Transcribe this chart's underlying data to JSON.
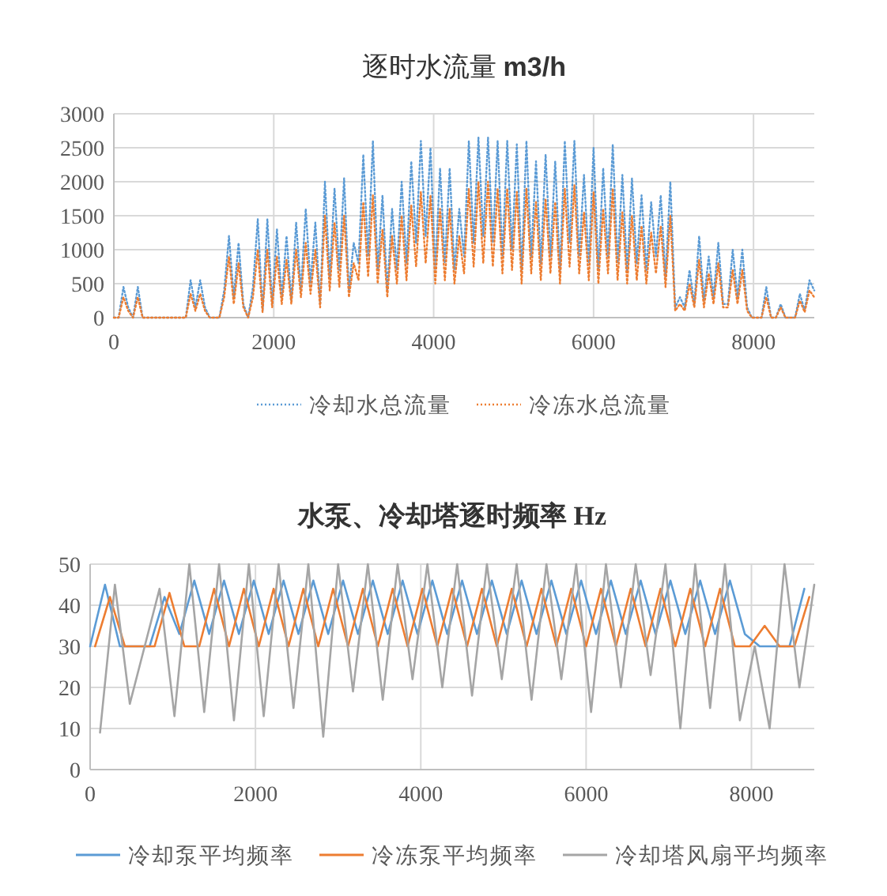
{
  "chart_data": [
    {
      "type": "line",
      "title": "逐时水流量 **m3/h**",
      "line_style": "dotted",
      "grid": true,
      "legend": "bottom",
      "marker": "none",
      "xlim": [
        0,
        8760
      ],
      "xticks": [
        0,
        2000,
        4000,
        6000,
        8000
      ],
      "ylim": [
        0,
        3000
      ],
      "yticks": [
        0,
        500,
        1000,
        1500,
        2000,
        2500,
        3000
      ],
      "x": [
        0,
        60,
        120,
        180,
        240,
        300,
        360,
        420,
        480,
        540,
        600,
        660,
        720,
        780,
        840,
        900,
        960,
        1020,
        1080,
        1140,
        1200,
        1260,
        1320,
        1380,
        1440,
        1500,
        1560,
        1620,
        1680,
        1740,
        1800,
        1860,
        1920,
        1980,
        2040,
        2100,
        2160,
        2220,
        2280,
        2340,
        2400,
        2460,
        2520,
        2580,
        2640,
        2700,
        2760,
        2820,
        2880,
        2940,
        3000,
        3060,
        3120,
        3180,
        3240,
        3300,
        3360,
        3420,
        3480,
        3540,
        3600,
        3660,
        3720,
        3780,
        3840,
        3900,
        3960,
        4020,
        4080,
        4140,
        4200,
        4260,
        4320,
        4380,
        4440,
        4500,
        4560,
        4620,
        4680,
        4740,
        4800,
        4860,
        4920,
        4980,
        5040,
        5100,
        5160,
        5220,
        5280,
        5340,
        5400,
        5460,
        5520,
        5580,
        5640,
        5700,
        5760,
        5820,
        5880,
        5940,
        6000,
        6060,
        6120,
        6180,
        6240,
        6300,
        6360,
        6420,
        6480,
        6540,
        6600,
        6660,
        6720,
        6780,
        6840,
        6900,
        6960,
        7020,
        7080,
        7140,
        7200,
        7260,
        7320,
        7380,
        7440,
        7500,
        7560,
        7620,
        7680,
        7740,
        7800,
        7860,
        7920,
        7980,
        8040,
        8100,
        8160,
        8220,
        8280,
        8340,
        8400,
        8460,
        8520,
        8580,
        8640,
        8700,
        8760
      ],
      "series": [
        {
          "name": "冷却水总流量",
          "color": "#5b9bd5",
          "values": [
            0,
            0,
            450,
            150,
            0,
            450,
            0,
            0,
            0,
            0,
            0,
            0,
            0,
            0,
            0,
            0,
            550,
            150,
            550,
            150,
            0,
            0,
            0,
            400,
            1200,
            300,
            1100,
            200,
            0,
            450,
            1450,
            100,
            1450,
            200,
            1300,
            300,
            1200,
            250,
            1400,
            400,
            1600,
            500,
            1400,
            200,
            2000,
            600,
            1900,
            700,
            2050,
            400,
            1100,
            800,
            2400,
            900,
            2600,
            700,
            1800,
            400,
            1600,
            700,
            2000,
            800,
            2300,
            1100,
            2600,
            1200,
            2500,
            700,
            2200,
            800,
            2200,
            700,
            1600,
            900,
            2600,
            1100,
            2650,
            1200,
            2650,
            1100,
            2600,
            900,
            2600,
            1000,
            2550,
            700,
            2600,
            900,
            2300,
            800,
            2400,
            900,
            2300,
            700,
            2600,
            1100,
            2600,
            900,
            2100,
            800,
            2500,
            700,
            2200,
            900,
            2550,
            800,
            2100,
            700,
            2050,
            800,
            1800,
            700,
            1700,
            900,
            1800,
            600,
            2000,
            150,
            300,
            150,
            700,
            200,
            1200,
            250,
            900,
            300,
            1100,
            200,
            200,
            1000,
            300,
            1000,
            150,
            0,
            0,
            0,
            450,
            0,
            0,
            200,
            0,
            0,
            0,
            350,
            100,
            550,
            400
          ]
        },
        {
          "name": "冷冻水总流量",
          "color": "#ed7d31",
          "values": [
            0,
            0,
            300,
            100,
            0,
            300,
            0,
            0,
            0,
            0,
            0,
            0,
            0,
            0,
            0,
            0,
            350,
            100,
            350,
            100,
            0,
            0,
            0,
            300,
            900,
            200,
            800,
            150,
            0,
            300,
            1000,
            80,
            1000,
            150,
            900,
            200,
            850,
            200,
            1000,
            300,
            1100,
            350,
            1000,
            150,
            1500,
            400,
            1400,
            450,
            1500,
            300,
            800,
            550,
            1700,
            600,
            1800,
            500,
            1300,
            300,
            1200,
            500,
            1500,
            550,
            1650,
            750,
            1850,
            800,
            1800,
            500,
            1600,
            550,
            1600,
            500,
            1200,
            650,
            1900,
            750,
            2000,
            800,
            2000,
            750,
            1900,
            650,
            1900,
            700,
            1850,
            500,
            1900,
            650,
            1700,
            550,
            1750,
            650,
            1700,
            500,
            1900,
            750,
            1950,
            650,
            1550,
            550,
            1850,
            500,
            1600,
            650,
            1900,
            550,
            1550,
            500,
            1500,
            550,
            1350,
            500,
            1250,
            650,
            1350,
            450,
            1500,
            100,
            200,
            100,
            500,
            150,
            850,
            150,
            650,
            200,
            800,
            150,
            150,
            700,
            200,
            700,
            100,
            0,
            0,
            0,
            300,
            0,
            0,
            150,
            0,
            0,
            0,
            250,
            80,
            400,
            300
          ]
        }
      ]
    },
    {
      "type": "line",
      "title": "水泵、冷却塔逐时频率 Hz",
      "grid": true,
      "legend": "bottom",
      "marker": "none",
      "xlim": [
        0,
        8760
      ],
      "xticks": [
        0,
        2000,
        4000,
        6000,
        8000
      ],
      "ylim": [
        0,
        50
      ],
      "yticks": [
        0,
        10,
        20,
        30,
        40,
        50
      ],
      "series": [
        {
          "name": "冷却泵平均频率",
          "color": "#5b9bd5",
          "x": [
            0,
            180,
            360,
            540,
            720,
            900,
            1080,
            1260,
            1440,
            1620,
            1800,
            1980,
            2160,
            2340,
            2520,
            2700,
            2880,
            3060,
            3240,
            3420,
            3600,
            3780,
            3960,
            4140,
            4320,
            4500,
            4680,
            4860,
            5040,
            5220,
            5400,
            5580,
            5760,
            5940,
            6120,
            6300,
            6480,
            6660,
            6840,
            7020,
            7200,
            7380,
            7560,
            7740,
            7920,
            8100,
            8280,
            8460,
            8640
          ],
          "values": [
            30,
            45,
            30,
            30,
            30,
            42,
            33,
            46,
            33,
            46,
            33,
            46,
            33,
            46,
            33,
            46,
            33,
            46,
            33,
            46,
            33,
            46,
            33,
            46,
            33,
            46,
            33,
            46,
            33,
            46,
            33,
            46,
            33,
            46,
            33,
            46,
            33,
            46,
            33,
            46,
            33,
            46,
            33,
            46,
            33,
            30,
            30,
            30,
            44
          ]
        },
        {
          "name": "冷冻泵平均频率",
          "color": "#ed7d31",
          "x": [
            60,
            240,
            420,
            600,
            780,
            960,
            1140,
            1320,
            1500,
            1680,
            1860,
            2040,
            2220,
            2400,
            2580,
            2760,
            2940,
            3120,
            3300,
            3480,
            3660,
            3840,
            4020,
            4200,
            4380,
            4560,
            4740,
            4920,
            5100,
            5280,
            5460,
            5640,
            5820,
            6000,
            6180,
            6360,
            6540,
            6720,
            6900,
            7080,
            7260,
            7440,
            7620,
            7800,
            7980,
            8160,
            8340,
            8520,
            8700
          ],
          "values": [
            30,
            42,
            30,
            30,
            30,
            43,
            30,
            30,
            44,
            30,
            44,
            30,
            44,
            30,
            44,
            30,
            44,
            30,
            44,
            30,
            44,
            30,
            44,
            30,
            44,
            30,
            44,
            30,
            44,
            30,
            44,
            30,
            44,
            30,
            44,
            30,
            44,
            30,
            44,
            30,
            44,
            30,
            44,
            30,
            30,
            35,
            30,
            30,
            42
          ]
        },
        {
          "name": "冷却塔风扇平均频率",
          "color": "#a5a5a5",
          "x": [
            120,
            300,
            480,
            660,
            840,
            1020,
            1200,
            1380,
            1560,
            1740,
            1920,
            2100,
            2280,
            2460,
            2640,
            2820,
            3000,
            3180,
            3360,
            3540,
            3720,
            3900,
            4080,
            4260,
            4440,
            4620,
            4800,
            4980,
            5160,
            5340,
            5520,
            5700,
            5880,
            6060,
            6240,
            6420,
            6600,
            6780,
            6960,
            7140,
            7320,
            7500,
            7680,
            7860,
            8040,
            8220,
            8400,
            8580,
            8760
          ],
          "values": [
            9,
            45,
            16,
            30,
            44,
            13,
            50,
            14,
            50,
            12,
            50,
            13,
            50,
            15,
            50,
            8,
            50,
            19,
            50,
            17,
            50,
            22,
            50,
            20,
            50,
            18,
            50,
            22,
            50,
            17,
            50,
            22,
            50,
            14,
            50,
            20,
            50,
            23,
            50,
            10,
            50,
            15,
            50,
            12,
            30,
            10,
            50,
            20,
            45
          ]
        }
      ]
    }
  ]
}
